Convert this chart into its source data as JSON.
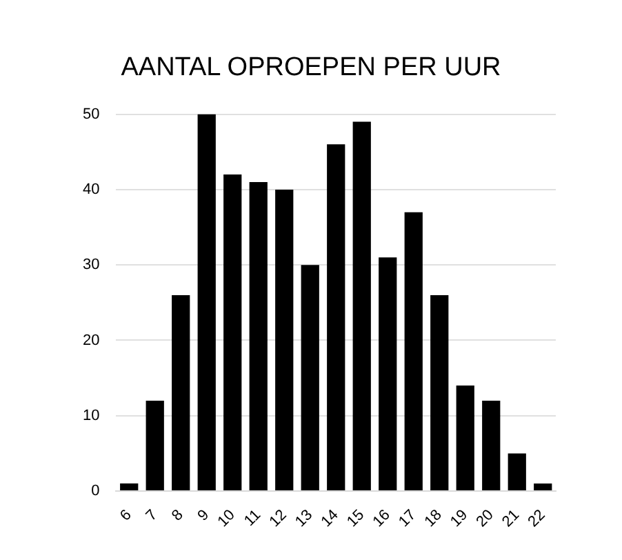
{
  "chart_data": {
    "type": "bar",
    "title": "AANTAL OPROEPEN PER UUR",
    "categories": [
      "6",
      "7",
      "8",
      "9",
      "10",
      "11",
      "12",
      "13",
      "14",
      "15",
      "16",
      "17",
      "18",
      "19",
      "20",
      "21",
      "22"
    ],
    "values": [
      1,
      12,
      26,
      50,
      42,
      41,
      40,
      30,
      46,
      49,
      31,
      37,
      26,
      14,
      12,
      5,
      1
    ],
    "color": "#000000",
    "ylim": [
      0,
      50
    ],
    "yticks": [
      0,
      10,
      20,
      30,
      40,
      50
    ],
    "grid": "y"
  }
}
